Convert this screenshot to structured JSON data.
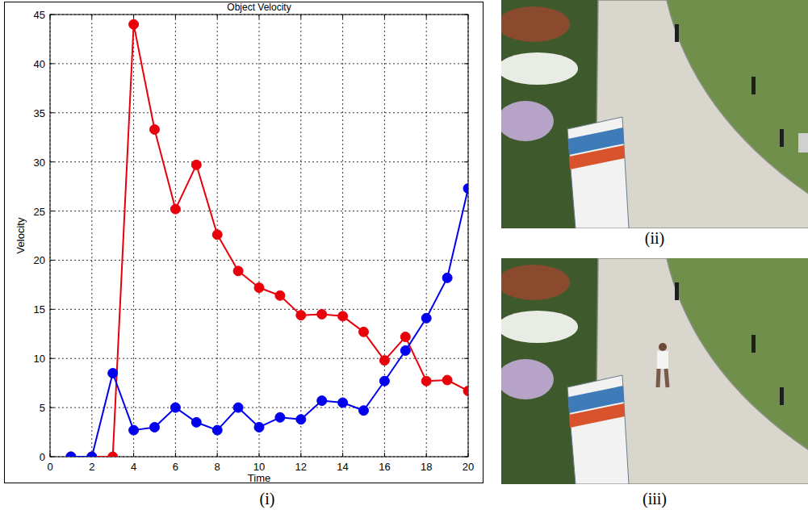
{
  "chart_data": {
    "type": "line",
    "title": "Object Velocity",
    "x_label": "Time",
    "y_label": "Velocity",
    "x": [
      1,
      2,
      3,
      4,
      5,
      6,
      7,
      8,
      9,
      10,
      11,
      12,
      13,
      14,
      15,
      16,
      17,
      18,
      19,
      20
    ],
    "series": [
      {
        "color": "#e8000b",
        "marker": "circle",
        "line_style": "solid",
        "values": [
          0,
          0,
          0,
          44,
          33.3,
          25.2,
          29.7,
          22.6,
          18.9,
          17.2,
          16.4,
          14.4,
          14.5,
          14.3,
          12.7,
          9.8,
          12.2,
          7.7,
          7.8,
          6.7
        ]
      },
      {
        "color": "#0000ee",
        "marker": "circle",
        "line_style": "solid",
        "values": [
          0,
          0,
          8.5,
          2.7,
          3.0,
          5.0,
          3.5,
          2.7,
          5.0,
          3.0,
          4.0,
          3.8,
          5.7,
          5.5,
          4.7,
          7.7,
          10.8,
          14.1,
          18.2,
          27.3
        ]
      }
    ],
    "xlim": [
      0,
      20
    ],
    "xticks": [
      0,
      2,
      4,
      6,
      8,
      10,
      12,
      14,
      16,
      18,
      20
    ],
    "ylim": [
      0,
      45
    ],
    "yticks": [
      0,
      5,
      10,
      15,
      20,
      25,
      30,
      35,
      40,
      45
    ],
    "grid": true
  },
  "captions": [
    "(i)",
    "(ii)",
    "(iii)"
  ]
}
